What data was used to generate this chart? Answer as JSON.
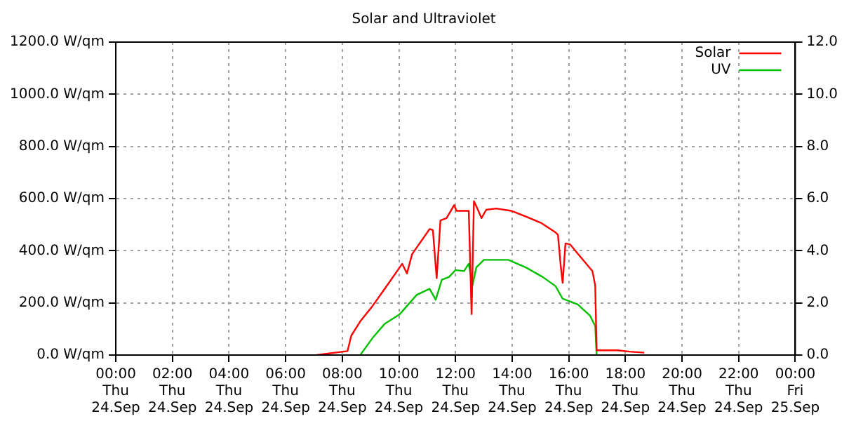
{
  "chart_data": {
    "type": "line",
    "title": "Solar and Ultraviolet",
    "xlim": [
      "--09-24T00:00",
      "--09-25T00:00"
    ],
    "xticks": [
      {
        "value": "--09-24T00:00",
        "label": "00:00\nThu\n24.Sep"
      },
      {
        "value": "--09-24T02:00",
        "label": "02:00\nThu\n24.Sep"
      },
      {
        "value": "--09-24T04:00",
        "label": "04:00\nThu\n24.Sep"
      },
      {
        "value": "--09-24T06:00",
        "label": "06:00\nThu\n24.Sep"
      },
      {
        "value": "--09-24T08:00",
        "label": "08:00\nThu\n24.Sep"
      },
      {
        "value": "--09-24T10:00",
        "label": "10:00\nThu\n24.Sep"
      },
      {
        "value": "--09-24T12:00",
        "label": "12:00\nThu\n24.Sep"
      },
      {
        "value": "--09-24T14:00",
        "label": "14:00\nThu\n24.Sep"
      },
      {
        "value": "--09-24T16:00",
        "label": "16:00\nThu\n24.Sep"
      },
      {
        "value": "--09-24T18:00",
        "label": "18:00\nThu\n24.Sep"
      },
      {
        "value": "--09-24T20:00",
        "label": "20:00\nThu\n24.Sep"
      },
      {
        "value": "--09-24T22:00",
        "label": "22:00\nThu\n24.Sep"
      },
      {
        "value": "--09-25T00:00",
        "label": "00:00\nFri\n25.Sep"
      }
    ],
    "ylim": [
      0,
      1200
    ],
    "yticks": [
      {
        "value": 0,
        "label": "0.0 W/qm"
      },
      {
        "value": 200,
        "label": "200.0 W/qm"
      },
      {
        "value": 400,
        "label": "400.0 W/qm"
      },
      {
        "value": 600,
        "label": "600.0 W/qm"
      },
      {
        "value": 800,
        "label": "800.0 W/qm"
      },
      {
        "value": 1000,
        "label": "1000.0 W/qm"
      },
      {
        "value": 1200,
        "label": "1200.0 W/qm"
      }
    ],
    "y2lim": [
      0,
      12
    ],
    "y2ticks": [
      {
        "value": 0,
        "label": "0.0"
      },
      {
        "value": 2,
        "label": "2.0"
      },
      {
        "value": 4,
        "label": "4.0"
      },
      {
        "value": 6,
        "label": "6.0"
      },
      {
        "value": 8,
        "label": "8.0"
      },
      {
        "value": 10,
        "label": "10.0"
      },
      {
        "value": 12,
        "label": "12.0"
      }
    ],
    "grid": true,
    "legend": "top right",
    "marker": "none",
    "line_style": "solid",
    "series": [
      {
        "name": "Solar",
        "color": "#ff0000",
        "x": [
          "--09-24T07:05",
          "--09-24T08:11",
          "--09-24T08:19",
          "--09-24T08:38",
          "--09-24T09:04",
          "--09-24T09:35",
          "--09-24T10:07",
          "--09-24T10:17",
          "--09-24T10:28",
          "--09-24T11:05",
          "--09-24T11:12",
          "--09-24T11:20",
          "--09-24T11:28",
          "--09-24T11:41",
          "--09-24T11:57",
          "--09-24T12:02",
          "--09-24T12:28",
          "--09-24T12:34",
          "--09-24T12:39",
          "--09-24T12:44",
          "--09-24T12:55",
          "--09-24T13:05",
          "--09-24T13:26",
          "--09-24T13:58",
          "--09-24T14:29",
          "--09-24T15:01",
          "--09-24T15:32",
          "--09-24T15:37",
          "--09-24T15:43",
          "--09-24T15:47",
          "--09-24T15:53",
          "--09-24T16:03",
          "--09-24T16:24",
          "--09-24T16:50",
          "--09-24T16:56",
          "--09-24T16:59",
          "--09-24T17:43",
          "--09-24T18:09",
          "--09-24T18:40"
        ],
        "values": [
          0,
          15,
          74,
          129,
          188,
          267,
          350,
          313,
          387,
          483,
          479,
          295,
          516,
          525,
          575,
          553,
          553,
          157,
          590,
          571,
          525,
          557,
          562,
          553,
          531,
          507,
          470,
          461,
          341,
          277,
          428,
          424,
          378,
          322,
          267,
          18,
          18,
          13,
          9
        ]
      },
      {
        "name": "UV",
        "color": "#00c000",
        "axis": "y2",
        "x": [
          "--09-24T08:38",
          "--09-24T09:04",
          "--09-24T09:30",
          "--09-24T10:02",
          "--09-24T10:38",
          "--09-24T11:05",
          "--09-24T11:18",
          "--09-24T11:31",
          "--09-24T11:46",
          "--09-24T12:00",
          "--09-24T12:18",
          "--09-24T12:28",
          "--09-24T12:36",
          "--09-24T12:44",
          "--09-24T13:00",
          "--09-24T13:52",
          "--09-24T14:29",
          "--09-24T15:05",
          "--09-24T15:32",
          "--09-24T15:47",
          "--09-24T16:19",
          "--09-24T16:45",
          "--09-24T16:56",
          "--09-24T16:59"
        ],
        "values": [
          0,
          0.65,
          1.2,
          1.57,
          2.31,
          2.54,
          2.12,
          2.89,
          2.99,
          3.26,
          3.22,
          3.5,
          2.67,
          3.36,
          3.65,
          3.65,
          3.36,
          2.99,
          2.64,
          2.16,
          1.94,
          1.51,
          1.11,
          0
        ]
      }
    ]
  }
}
